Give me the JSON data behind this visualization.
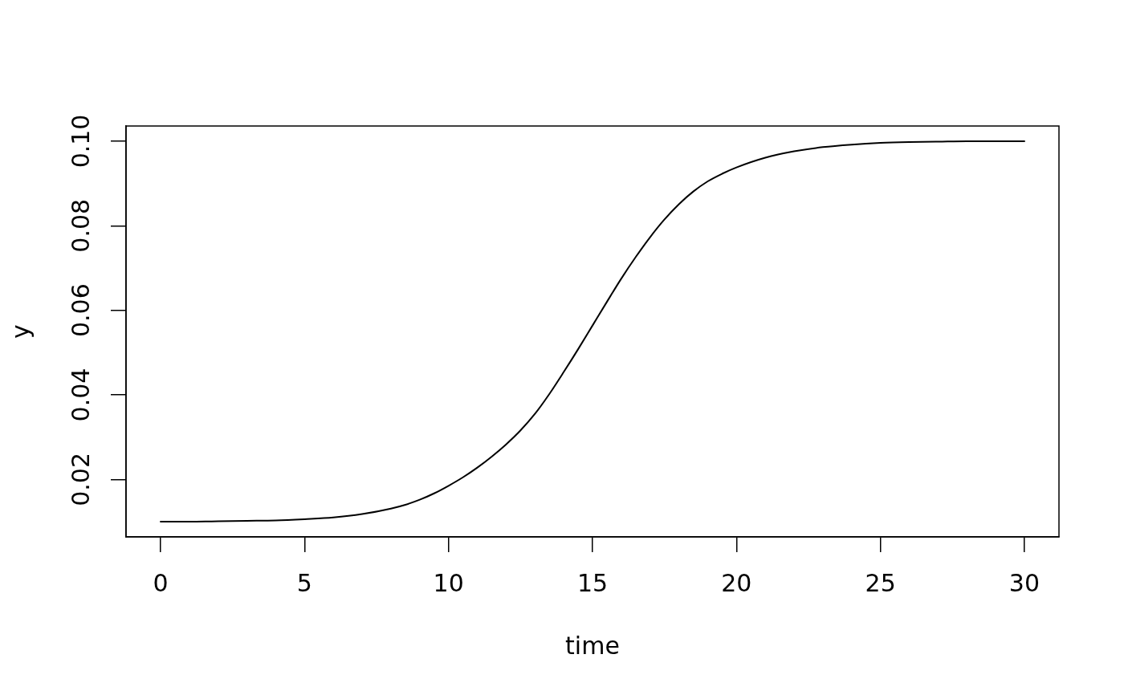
{
  "chart_data": {
    "type": "line",
    "xlabel": "time",
    "ylabel": "y",
    "x": [
      0,
      1,
      2,
      3,
      4,
      5,
      6,
      7,
      8,
      8.5,
      9,
      9.5,
      10,
      10.5,
      11,
      11.5,
      12,
      12.5,
      13,
      13.5,
      14,
      14.5,
      15,
      15.5,
      16,
      16.5,
      17,
      17.5,
      18,
      18.5,
      19,
      19.5,
      20,
      21,
      22,
      23,
      24,
      25,
      26,
      27,
      28,
      29,
      30
    ],
    "values": [
      0.01,
      0.01,
      0.0101,
      0.0102,
      0.0103,
      0.0106,
      0.011,
      0.0118,
      0.0131,
      0.014,
      0.0152,
      0.0167,
      0.0185,
      0.0205,
      0.0228,
      0.0254,
      0.0283,
      0.0316,
      0.0355,
      0.0402,
      0.0454,
      0.0508,
      0.0564,
      0.062,
      0.0675,
      0.0726,
      0.0773,
      0.0815,
      0.0851,
      0.0881,
      0.0905,
      0.0923,
      0.0938,
      0.0961,
      0.0976,
      0.0986,
      0.0992,
      0.0996,
      0.0998,
      0.0999,
      0.1,
      0.1,
      0.1
    ],
    "color": "#000000",
    "xlim": [
      -1.2,
      31.2
    ],
    "xticks": [
      0,
      5,
      10,
      15,
      20,
      25,
      30
    ],
    "ylim": [
      0.0064,
      0.1036
    ],
    "yticks": [
      0.02,
      0.04,
      0.06,
      0.08,
      {
        "value": 0.1,
        "label": "0.10"
      }
    ]
  }
}
